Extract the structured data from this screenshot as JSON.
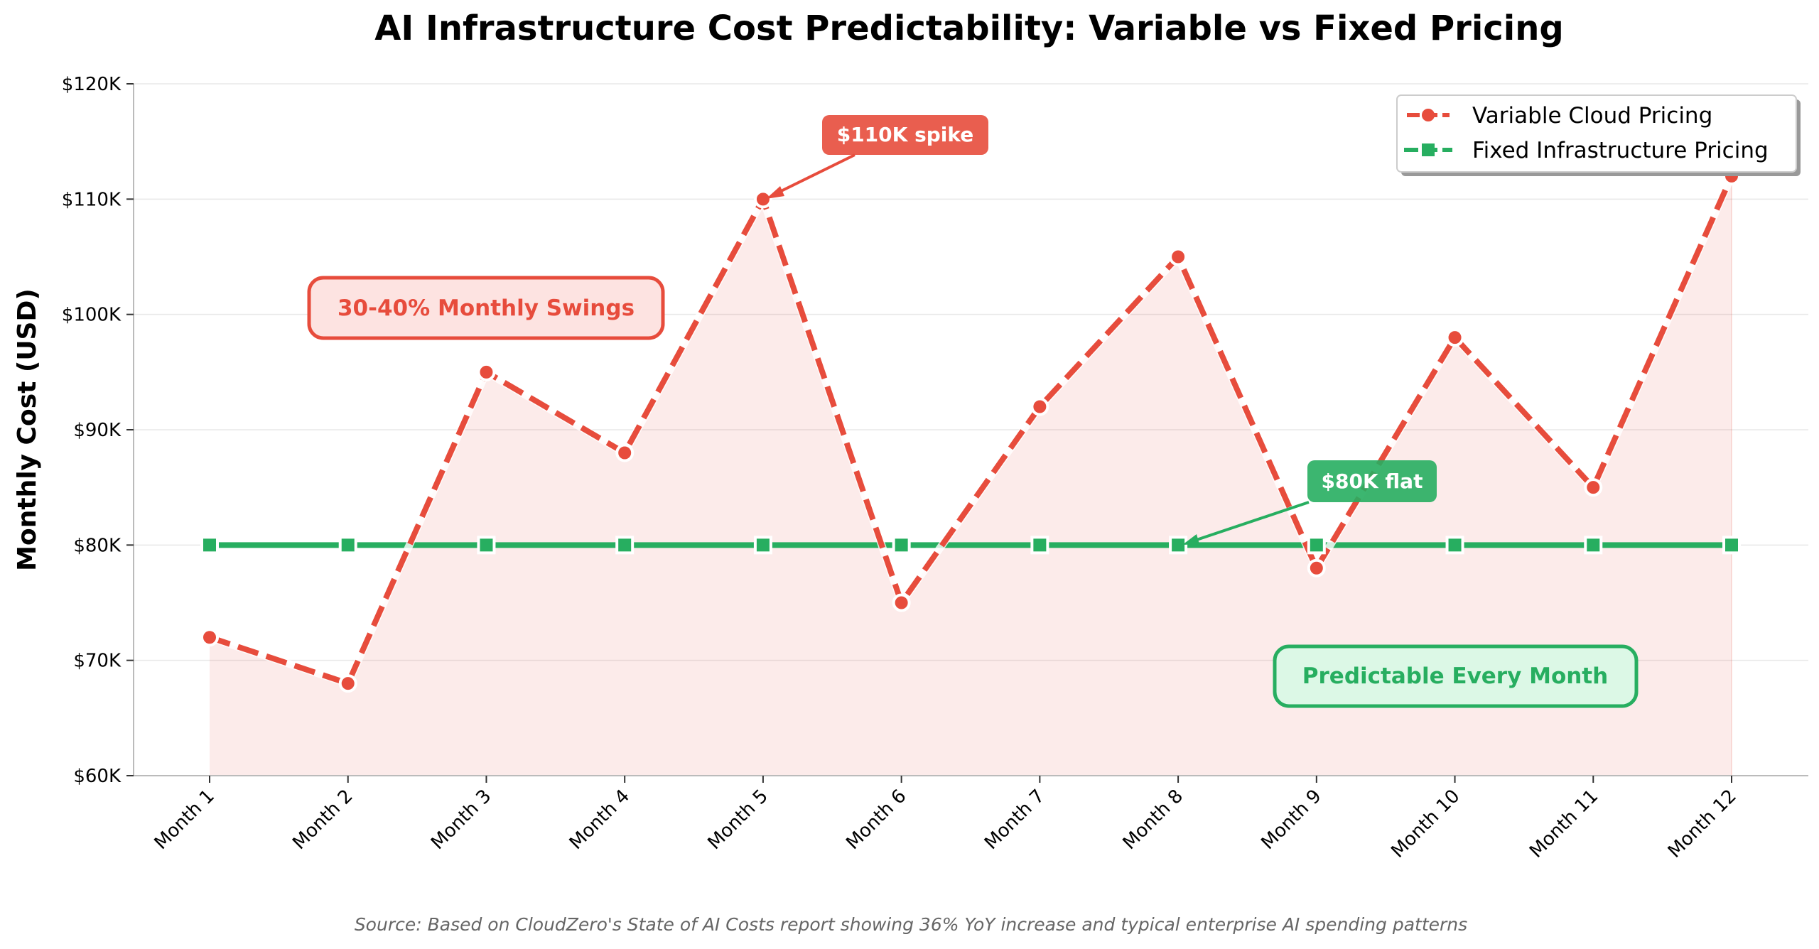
{
  "chart_data": {
    "type": "line",
    "title": "AI Infrastructure Cost Predictability: Variable vs Fixed Pricing",
    "xlabel": "",
    "ylabel": "Monthly Cost (USD)",
    "categories": [
      "Month 1",
      "Month 2",
      "Month 3",
      "Month 4",
      "Month 5",
      "Month 6",
      "Month 7",
      "Month 8",
      "Month 9",
      "Month 10",
      "Month 11",
      "Month 12"
    ],
    "ylim": [
      60000,
      120000
    ],
    "yticks": [
      60000,
      70000,
      80000,
      90000,
      100000,
      110000,
      120000
    ],
    "ytick_labels": [
      "$60K",
      "$70K",
      "$80K",
      "$90K",
      "$100K",
      "$110K",
      "$120K"
    ],
    "grid": "horizontal",
    "legend_position": "top-right",
    "series": [
      {
        "name": "Variable Cloud Pricing",
        "color": "#e74c3c",
        "style": "dashed",
        "marker": "circle",
        "fill": true,
        "values": [
          72000,
          68000,
          95000,
          88000,
          110000,
          75000,
          92000,
          105000,
          78000,
          98000,
          85000,
          112000
        ]
      },
      {
        "name": "Fixed Infrastructure Pricing",
        "color": "#27ae60",
        "style": "dashed",
        "marker": "square",
        "values": [
          80000,
          80000,
          80000,
          80000,
          80000,
          80000,
          80000,
          80000,
          80000,
          80000,
          80000,
          80000
        ]
      }
    ],
    "annotations": {
      "spike": "$110K spike",
      "swings": "30-40% Monthly Swings",
      "flat": "$80K flat",
      "predictable": "Predictable Every Month"
    },
    "source": "Source: Based on CloudZero's State of AI Costs report showing 36% YoY increase and typical enterprise AI spending patterns"
  }
}
